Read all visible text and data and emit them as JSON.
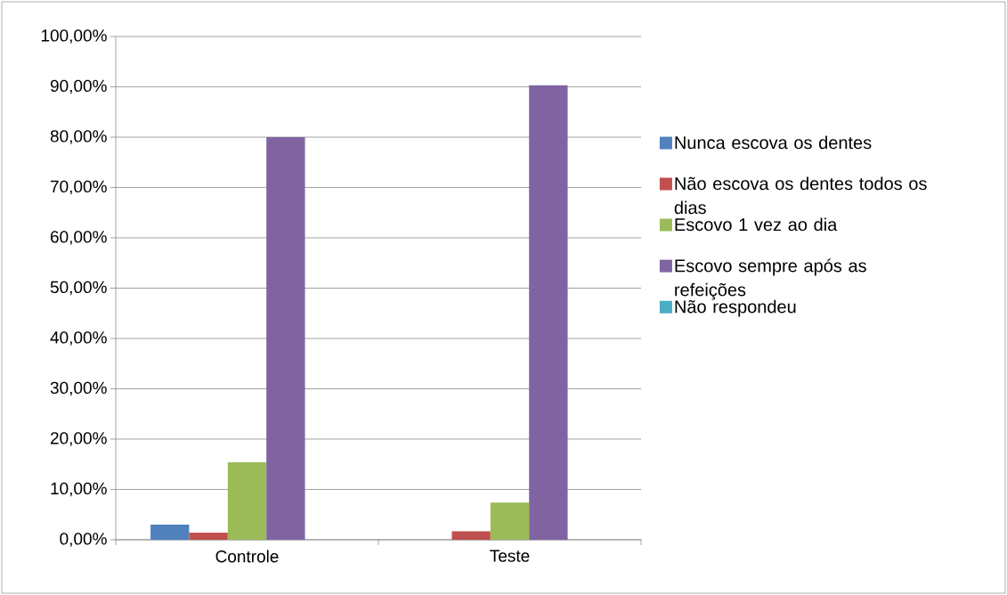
{
  "chart_data": {
    "type": "bar",
    "categories": [
      "Controle",
      "Teste"
    ],
    "series": [
      {
        "name": "Nunca escova os dentes",
        "color": "#4f81bd",
        "values": [
          3.0,
          0
        ]
      },
      {
        "name": "Não escova os dentes todos os dias",
        "color": "#c0504d",
        "values": [
          1.4,
          1.7
        ]
      },
      {
        "name": "Escovo 1 vez ao dia",
        "color": "#9bbb59",
        "values": [
          15.4,
          7.4
        ]
      },
      {
        "name": "Escovo sempre após as refeições",
        "color": "#8064a2",
        "values": [
          80,
          90.3
        ]
      },
      {
        "name": "Não respondeu",
        "color": "#4bacc6",
        "values": [
          0,
          0
        ]
      }
    ],
    "ylim": [
      0,
      100
    ],
    "yticks": [
      {
        "value": 0,
        "label": "0,00%"
      },
      {
        "value": 10,
        "label": "10,00%"
      },
      {
        "value": 20,
        "label": "20,00%"
      },
      {
        "value": 30,
        "label": "30,00%"
      },
      {
        "value": 40,
        "label": "40,00%"
      },
      {
        "value": 50,
        "label": "50,00%"
      },
      {
        "value": 60,
        "label": "60,00%"
      },
      {
        "value": 70,
        "label": "70,00%"
      },
      {
        "value": 80,
        "label": "80,00%"
      },
      {
        "value": 90,
        "label": "90,00%"
      },
      {
        "value": 100,
        "label": "100,00%"
      }
    ],
    "grid": "y",
    "legend": "right"
  }
}
